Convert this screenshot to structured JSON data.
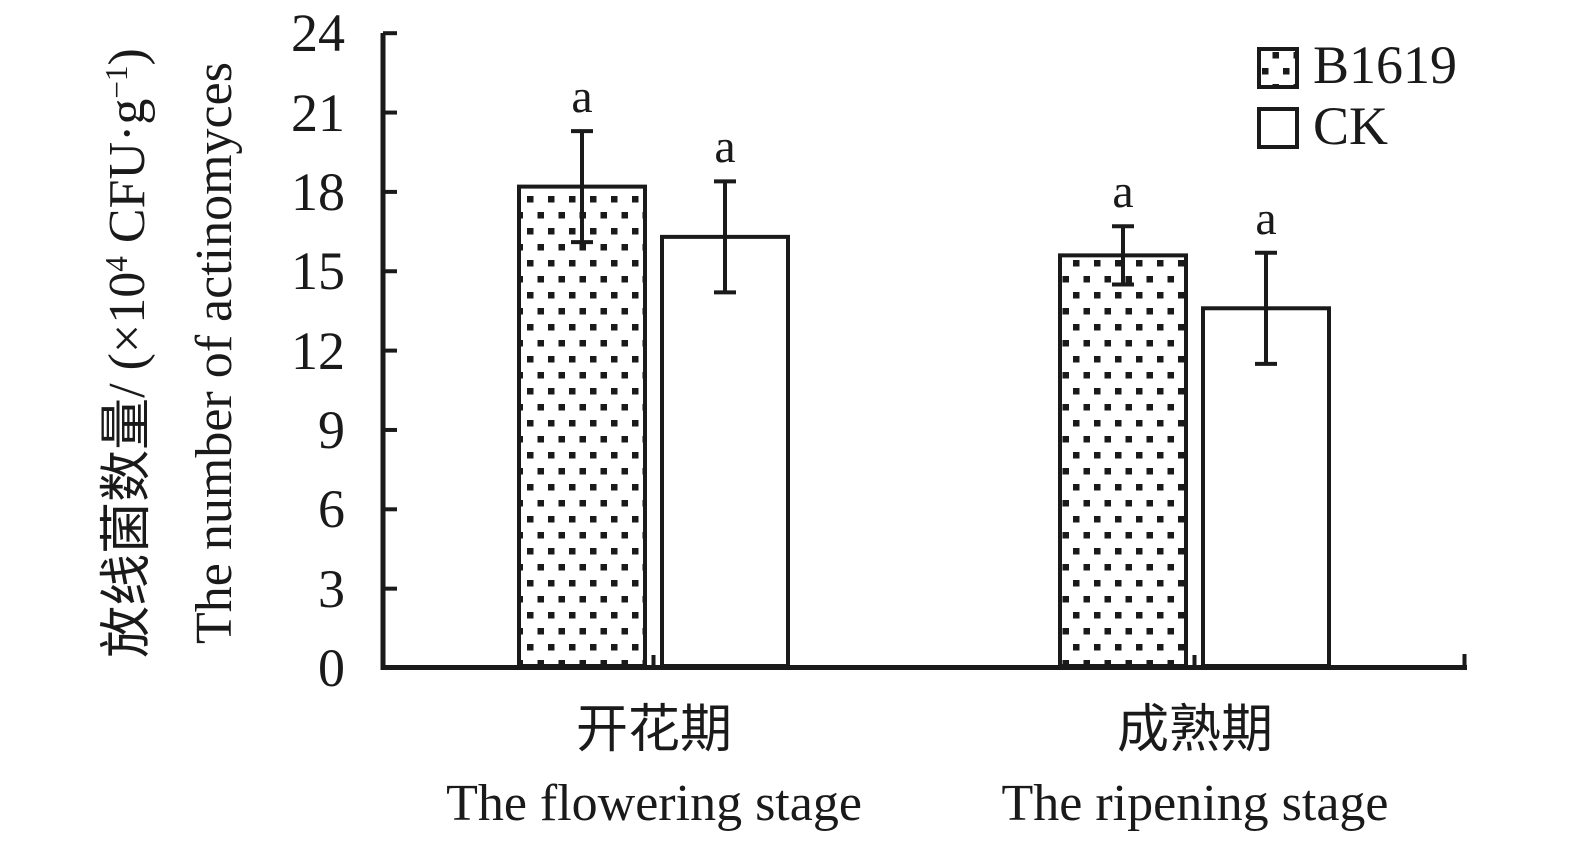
{
  "figure": {
    "legend": {
      "items": [
        {
          "label": "B1619",
          "swatch": "dotted-pattern"
        },
        {
          "label": "CK",
          "swatch": "white"
        }
      ]
    },
    "ylabel": {
      "zh_prefix": "放线菌数量/ (×10",
      "zh_sup1": "4",
      "zh_mid": " CFU·g",
      "zh_sup2": "−1",
      "zh_suffix": ")",
      "en": "The number of actinomyces"
    },
    "xaxis": {
      "categories": [
        {
          "zh": "开花期",
          "en": "The flowering stage"
        },
        {
          "zh": "成熟期",
          "en": "The ripening stage"
        }
      ]
    }
  },
  "chart_data": {
    "type": "bar",
    "title": "",
    "categories": [
      "开花期 The flowering stage",
      "成熟期 The ripening stage"
    ],
    "series": [
      {
        "name": "B1619",
        "values": [
          18.2,
          15.6
        ],
        "errors": [
          2.1,
          1.1
        ],
        "sig_labels": [
          "a",
          "a"
        ],
        "fill": "dotted-pattern"
      },
      {
        "name": "CK",
        "values": [
          16.3,
          13.6
        ],
        "errors": [
          2.1,
          2.1
        ],
        "sig_labels": [
          "a",
          "a"
        ],
        "fill": "white"
      }
    ],
    "xlabel": "",
    "ylabel": "放线菌数量/ (×10⁴ CFU·g⁻¹) The number of actinomyces",
    "ylim": [
      0,
      24
    ],
    "ytick_step": 3,
    "ytick_labels": [
      "24",
      "21",
      "18",
      "15",
      "12",
      "9",
      "6",
      "3",
      "0"
    ],
    "grid": false,
    "legend_position": "top-right",
    "axis_color": "#1a1a1a",
    "bar_fill_colors": [
      "#ffffff",
      "#ffffff"
    ]
  }
}
